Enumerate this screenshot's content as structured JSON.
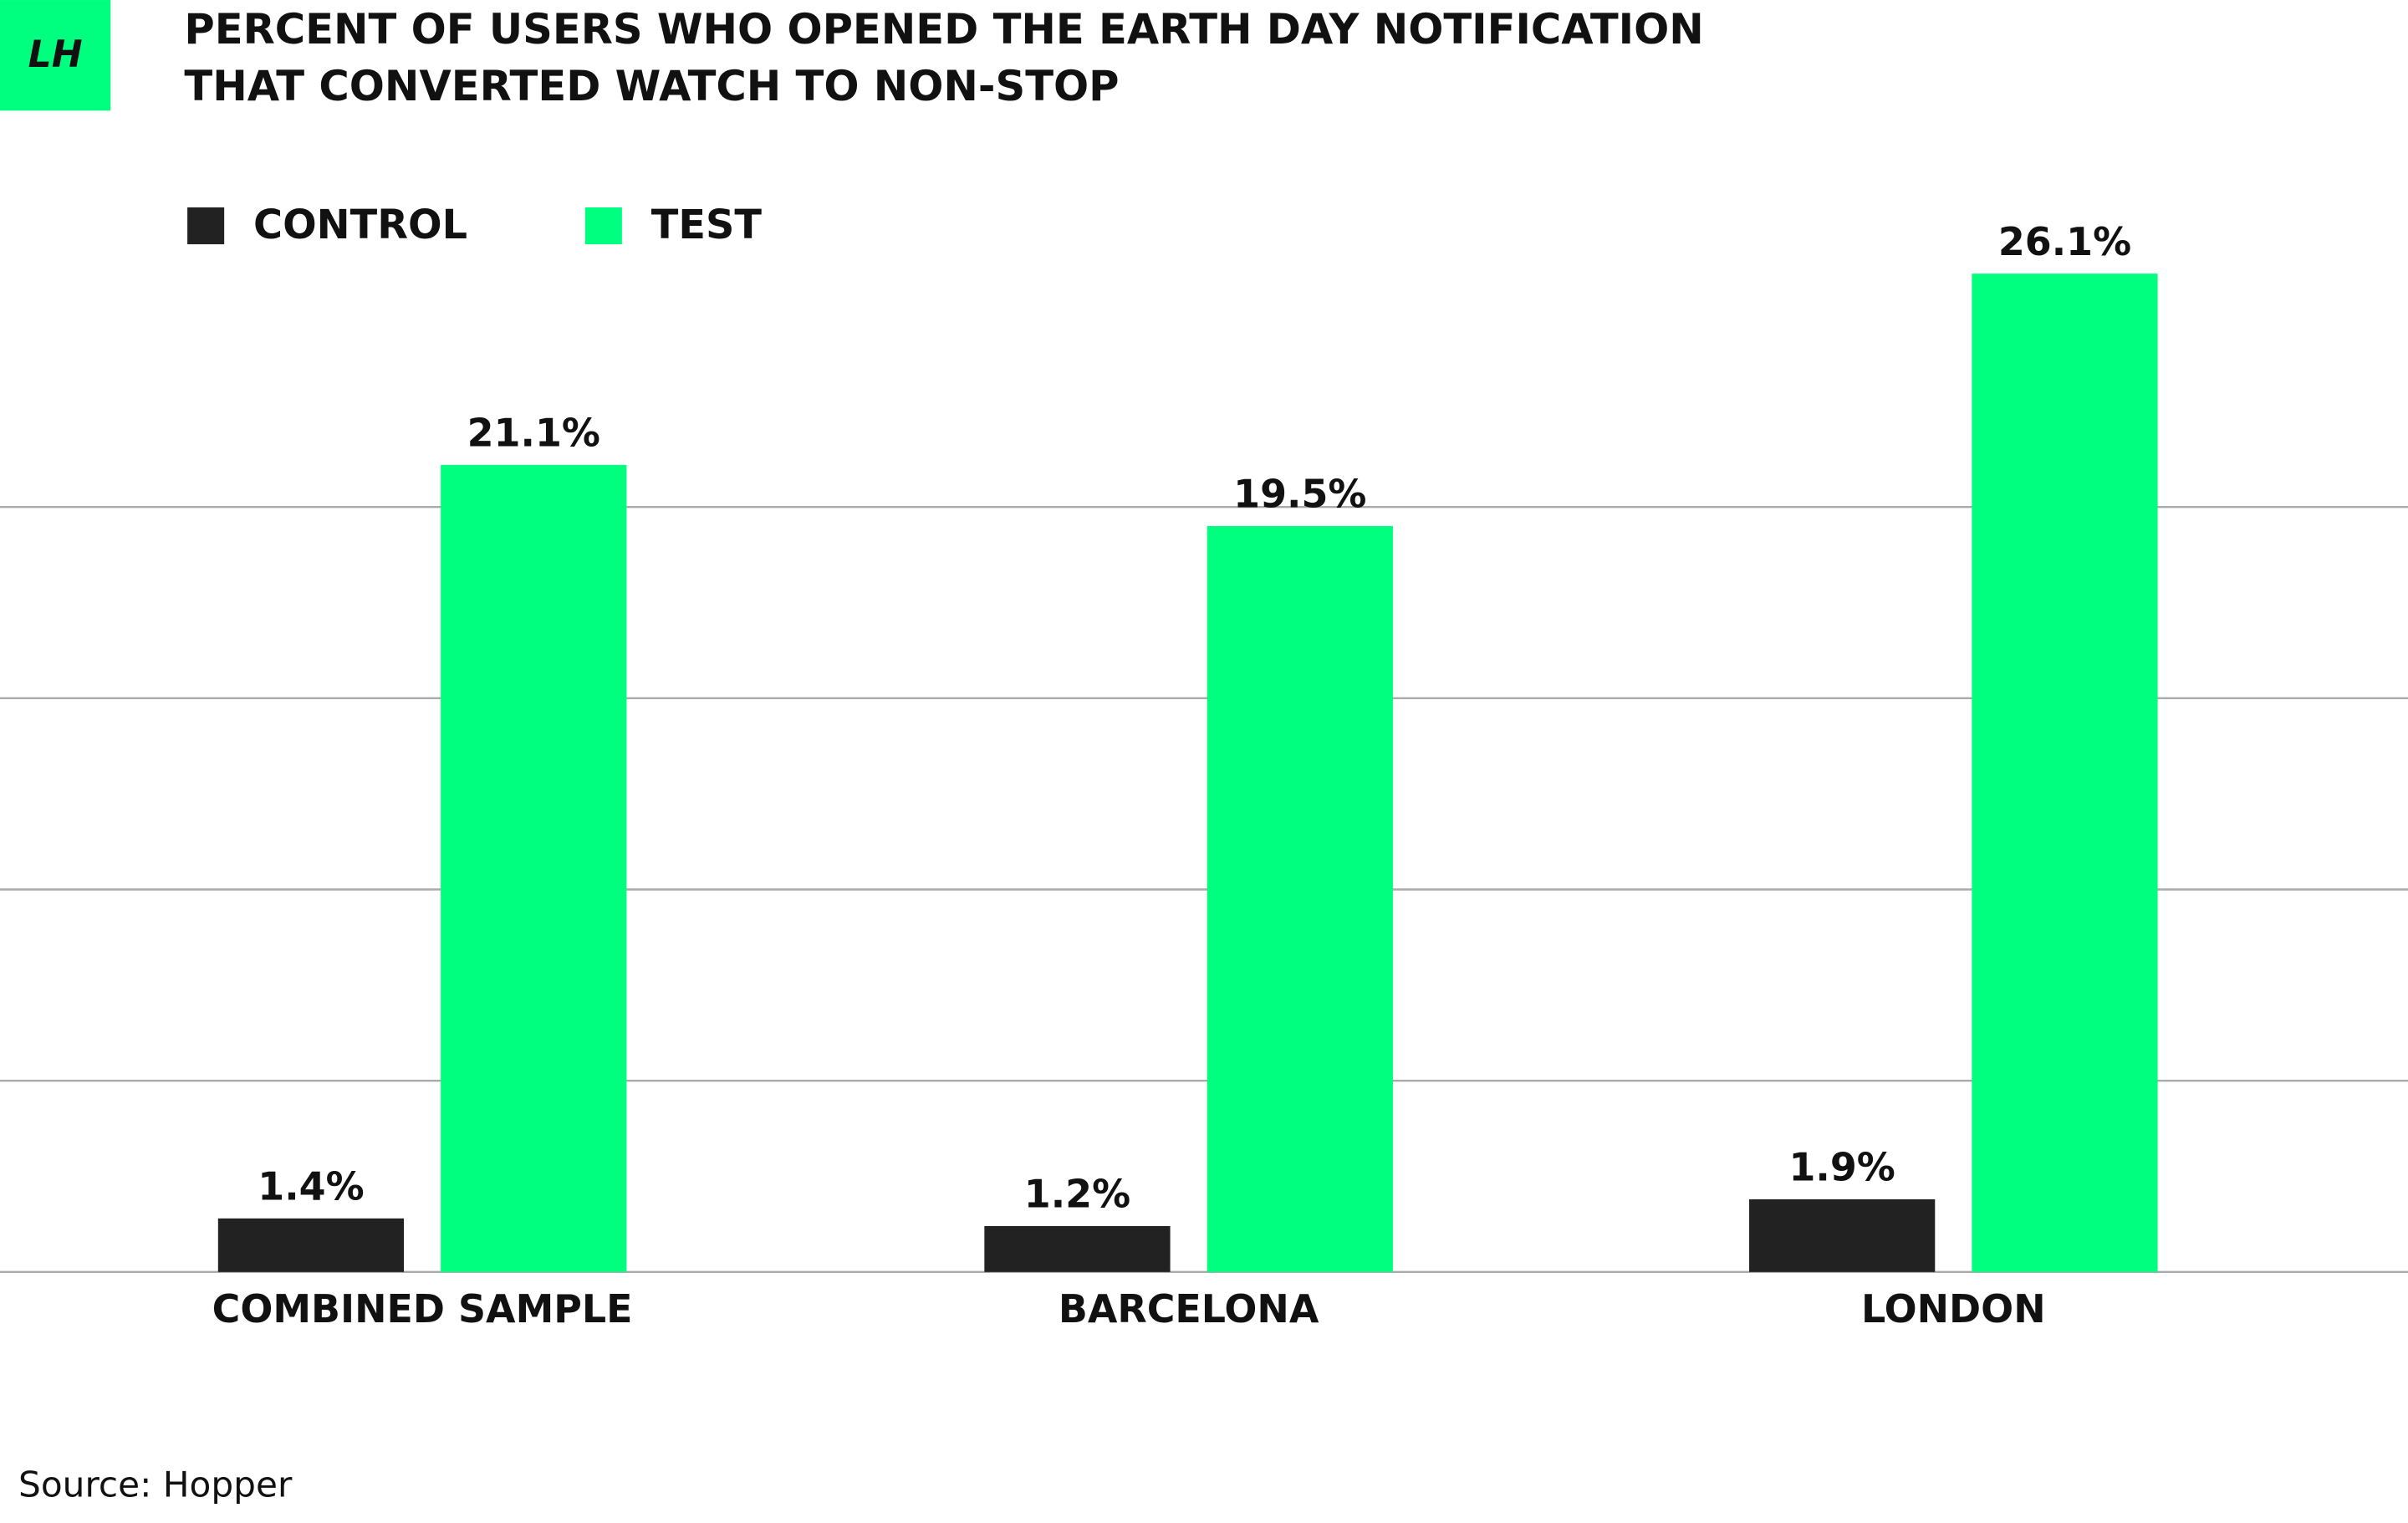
{
  "chart_data": {
    "type": "bar",
    "logo": "LH",
    "title": [
      "PERCENT OF USERS WHO OPENED THE EARTH DAY NOTIFICATION",
      "THAT CONVERTED WATCH TO NON-STOP"
    ],
    "categories": [
      "COMBINED SAMPLE",
      "BARCELONA",
      "LONDON"
    ],
    "series": [
      {
        "name": "CONTROL",
        "color": "#222222",
        "values": [
          1.4,
          1.2,
          1.9
        ],
        "value_labels": [
          "1.4%",
          "1.2%",
          "1.9%"
        ]
      },
      {
        "name": "TEST",
        "color": "#00ff7f",
        "values": [
          21.1,
          19.5,
          26.1
        ],
        "value_labels": [
          "21.1%",
          "19.5%",
          "26.1%"
        ]
      }
    ],
    "ylim": [
      0,
      30
    ],
    "yticks": [
      0,
      5,
      10,
      15,
      20
    ],
    "grid": true,
    "source": "Source: Hopper"
  }
}
